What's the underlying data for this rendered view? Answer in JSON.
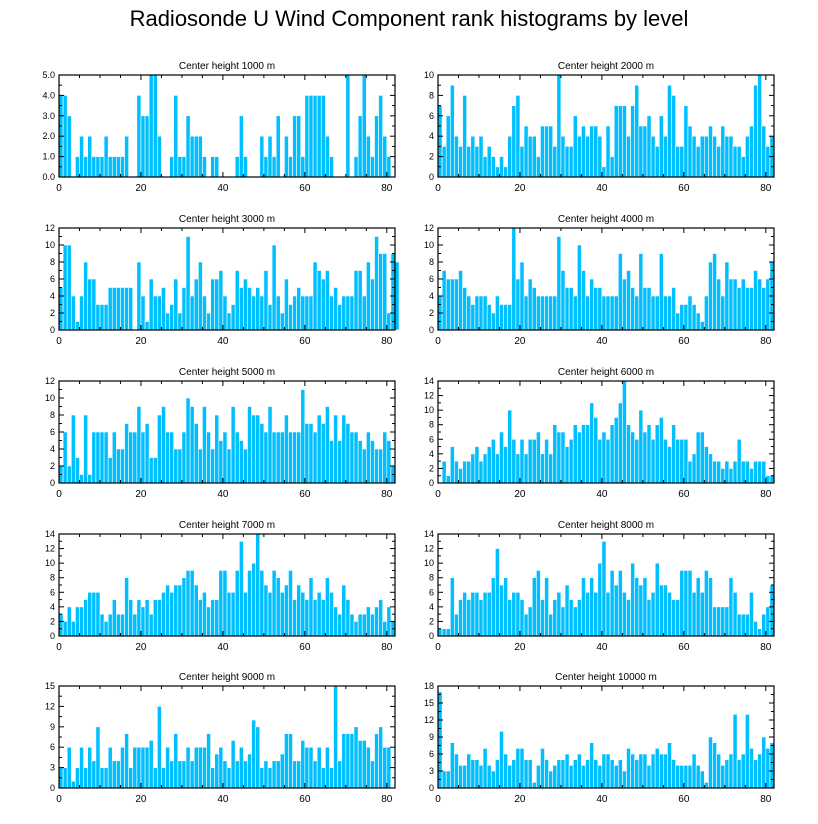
{
  "title": "Radiosonde U Wind Component rank histograms by level",
  "colors": {
    "bar_fill": "#00bfff",
    "bar_stroke": "#ffffff",
    "axis": "#000000"
  },
  "chart_data": [
    {
      "type": "bar",
      "title": "Center height 1000 m",
      "xlim": [
        0,
        82
      ],
      "ylim": [
        0,
        5
      ],
      "xticks": [
        0,
        20,
        40,
        60,
        80
      ],
      "yticks": [
        0,
        1,
        2,
        3,
        4,
        5
      ],
      "ytick_labels": [
        "0.0",
        "1.0",
        "2.0",
        "3.0",
        "4.0",
        "5.0"
      ],
      "values": [
        4,
        4,
        3,
        0,
        1,
        2,
        1,
        2,
        1,
        1,
        1,
        2,
        1,
        1,
        1,
        1,
        2,
        0,
        0,
        4,
        3,
        3,
        5,
        5,
        2,
        0,
        0,
        1,
        4,
        1,
        1,
        3,
        2,
        2,
        2,
        1,
        0,
        1,
        1,
        0,
        0,
        0,
        0,
        1,
        3,
        1,
        0,
        0,
        0,
        2,
        1,
        2,
        1,
        3,
        0,
        2,
        1,
        3,
        3,
        1,
        4,
        4,
        4,
        4,
        4,
        2,
        1,
        0,
        0,
        0,
        5,
        0,
        1,
        3,
        5,
        2,
        1,
        3,
        4,
        2,
        1
      ]
    },
    {
      "type": "bar",
      "title": "Center height 2000 m",
      "xlim": [
        0,
        82
      ],
      "ylim": [
        0,
        10
      ],
      "xticks": [
        0,
        20,
        40,
        60,
        80
      ],
      "yticks": [
        0,
        2,
        4,
        6,
        8,
        10
      ],
      "ytick_labels": [
        "0",
        "2",
        "4",
        "6",
        "8",
        "10"
      ],
      "values": [
        7,
        3,
        6,
        9,
        4,
        3,
        8,
        3,
        4,
        3,
        4,
        2,
        3,
        2,
        1,
        2,
        1,
        4,
        7,
        8,
        3,
        5,
        4,
        4,
        2,
        5,
        5,
        5,
        3,
        10,
        4,
        3,
        3,
        6,
        4,
        5,
        4,
        5,
        5,
        4,
        1,
        5,
        2,
        7,
        7,
        7,
        4,
        7,
        9,
        5,
        5,
        6,
        4,
        3,
        6,
        4,
        9,
        8,
        3,
        3,
        7,
        5,
        4,
        3,
        4,
        4,
        5,
        4,
        3,
        5,
        4,
        4,
        3,
        3,
        2,
        4,
        5,
        9,
        10,
        5,
        3,
        4
      ]
    },
    {
      "type": "bar",
      "title": "Center height 3000 m",
      "xlim": [
        0,
        82
      ],
      "ylim": [
        0,
        12
      ],
      "xticks": [
        0,
        20,
        40,
        60,
        80
      ],
      "yticks": [
        0,
        2,
        4,
        6,
        8,
        10,
        12
      ],
      "ytick_labels": [
        "0",
        "2",
        "4",
        "6",
        "8",
        "10",
        "12"
      ],
      "values": [
        5,
        10,
        10,
        4,
        1,
        4,
        8,
        6,
        6,
        3,
        3,
        3,
        5,
        5,
        5,
        5,
        5,
        5,
        0,
        8,
        4,
        1,
        6,
        4,
        4,
        5,
        2,
        3,
        6,
        2,
        5,
        11,
        4,
        6,
        8,
        4,
        2,
        6,
        6,
        7,
        4,
        2,
        3,
        7,
        5,
        6,
        5,
        4,
        5,
        4,
        7,
        3,
        10,
        4,
        2,
        6,
        3,
        4,
        5,
        4,
        4,
        4,
        8,
        7,
        6,
        7,
        4,
        5,
        3,
        4,
        4,
        4,
        7,
        7,
        4,
        8,
        6,
        11,
        9,
        9,
        2,
        9,
        8
      ]
    },
    {
      "type": "bar",
      "title": "Center height 4000 m",
      "xlim": [
        0,
        82
      ],
      "ylim": [
        0,
        12
      ],
      "xticks": [
        0,
        20,
        40,
        60,
        80
      ],
      "yticks": [
        0,
        2,
        4,
        6,
        8,
        10,
        12
      ],
      "ytick_labels": [
        "0",
        "2",
        "4",
        "6",
        "8",
        "10",
        "12"
      ],
      "values": [
        4,
        7,
        6,
        6,
        6,
        7,
        5,
        4,
        3,
        4,
        4,
        4,
        3,
        2,
        4,
        3,
        3,
        3,
        12,
        6,
        8,
        4,
        6,
        5,
        4,
        4,
        4,
        4,
        4,
        11,
        7,
        5,
        5,
        4,
        10,
        7,
        4,
        6,
        5,
        5,
        4,
        4,
        4,
        4,
        9,
        6,
        7,
        5,
        4,
        9,
        5,
        5,
        4,
        4,
        9,
        4,
        4,
        5,
        2,
        3,
        3,
        4,
        3,
        2,
        1,
        4,
        8,
        9,
        6,
        4,
        8,
        6,
        6,
        5,
        6,
        5,
        5,
        7,
        6,
        5,
        6,
        8
      ]
    },
    {
      "type": "bar",
      "title": "Center height 5000 m",
      "xlim": [
        0,
        82
      ],
      "ylim": [
        0,
        12
      ],
      "xticks": [
        0,
        20,
        40,
        60,
        80
      ],
      "yticks": [
        0,
        2,
        4,
        6,
        8,
        10,
        12
      ],
      "ytick_labels": [
        "0",
        "2",
        "4",
        "6",
        "8",
        "10",
        "12"
      ],
      "values": [
        2,
        6,
        2,
        8,
        3,
        1,
        8,
        1,
        6,
        6,
        6,
        6,
        3,
        6,
        4,
        4,
        7,
        6,
        6,
        9,
        6,
        7,
        3,
        3,
        8,
        9,
        6,
        6,
        4,
        4,
        6,
        10,
        9,
        7,
        4,
        9,
        6,
        4,
        8,
        5,
        6,
        4,
        9,
        6,
        5,
        4,
        9,
        8,
        8,
        7,
        6,
        9,
        6,
        6,
        6,
        8,
        6,
        6,
        6,
        11,
        7,
        7,
        6,
        8,
        7,
        9,
        5,
        8,
        5,
        8,
        7,
        6,
        6,
        5,
        4,
        6,
        5,
        4,
        4,
        6,
        5,
        2
      ]
    },
    {
      "type": "bar",
      "title": "Center height 6000 m",
      "xlim": [
        0,
        82
      ],
      "ylim": [
        0,
        14
      ],
      "xticks": [
        0,
        20,
        40,
        60,
        80
      ],
      "yticks": [
        0,
        2,
        4,
        6,
        8,
        10,
        12,
        14
      ],
      "ytick_labels": [
        "0",
        "2",
        "4",
        "6",
        "8",
        "10",
        "12",
        "14"
      ],
      "values": [
        0,
        3,
        1,
        5,
        3,
        2,
        3,
        3,
        4,
        5,
        3,
        4,
        5,
        6,
        4,
        7,
        5,
        10,
        6,
        4,
        6,
        4,
        6,
        6,
        7,
        4,
        6,
        4,
        8,
        7,
        7,
        5,
        6,
        8,
        7,
        8,
        8,
        11,
        9,
        6,
        7,
        6,
        8,
        9,
        11,
        14,
        8,
        7,
        6,
        10,
        7,
        8,
        6,
        8,
        9,
        6,
        5,
        8,
        6,
        6,
        6,
        3,
        4,
        7,
        7,
        5,
        4,
        3,
        3,
        2,
        3,
        2,
        3,
        6,
        3,
        3,
        2,
        3,
        3,
        3,
        1,
        1
      ]
    },
    {
      "type": "bar",
      "title": "Center height 7000 m",
      "xlim": [
        0,
        82
      ],
      "ylim": [
        0,
        14
      ],
      "xticks": [
        0,
        20,
        40,
        60,
        80
      ],
      "yticks": [
        0,
        2,
        4,
        6,
        8,
        10,
        12,
        14
      ],
      "ytick_labels": [
        "0",
        "2",
        "4",
        "6",
        "8",
        "10",
        "12",
        "14"
      ],
      "values": [
        3,
        2,
        4,
        2,
        4,
        4,
        5,
        6,
        6,
        6,
        3,
        2,
        3,
        5,
        3,
        3,
        8,
        5,
        3,
        5,
        4,
        5,
        3,
        5,
        5,
        6,
        7,
        6,
        7,
        7,
        8,
        9,
        9,
        7,
        5,
        6,
        4,
        5,
        5,
        9,
        9,
        6,
        6,
        9,
        13,
        6,
        9,
        10,
        14,
        9,
        7,
        6,
        9,
        8,
        6,
        7,
        9,
        5,
        7,
        6,
        5,
        8,
        5,
        6,
        5,
        8,
        6,
        4,
        3,
        7,
        5,
        3,
        2,
        3,
        3,
        4,
        3,
        4,
        5,
        2,
        4,
        2
      ]
    },
    {
      "type": "bar",
      "title": "Center height 8000 m",
      "xlim": [
        0,
        82
      ],
      "ylim": [
        0,
        14
      ],
      "xticks": [
        0,
        20,
        40,
        60,
        80
      ],
      "yticks": [
        0,
        2,
        4,
        6,
        8,
        10,
        12,
        14
      ],
      "ytick_labels": [
        "0",
        "2",
        "4",
        "6",
        "8",
        "10",
        "12",
        "14"
      ],
      "values": [
        1,
        1,
        1,
        8,
        3,
        5,
        6,
        5,
        6,
        6,
        5,
        6,
        6,
        8,
        12,
        7,
        8,
        5,
        6,
        6,
        5,
        3,
        4,
        8,
        9,
        5,
        8,
        3,
        5,
        6,
        4,
        7,
        5,
        4,
        5,
        8,
        6,
        8,
        6,
        10,
        13,
        6,
        9,
        7,
        9,
        6,
        5,
        10,
        8,
        7,
        8,
        5,
        6,
        10,
        7,
        7,
        6,
        5,
        5,
        9,
        9,
        9,
        6,
        8,
        6,
        9,
        8,
        4,
        4,
        4,
        4,
        8,
        6,
        3,
        3,
        3,
        6,
        2,
        1,
        3,
        4,
        7
      ]
    },
    {
      "type": "bar",
      "title": "Center height 9000 m",
      "xlim": [
        0,
        82
      ],
      "ylim": [
        0,
        15
      ],
      "xticks": [
        0,
        20,
        40,
        60,
        80
      ],
      "yticks": [
        0,
        3,
        6,
        9,
        12,
        15
      ],
      "ytick_labels": [
        "0",
        "3",
        "6",
        "9",
        "12",
        "15"
      ],
      "values": [
        3,
        3,
        6,
        1,
        3,
        6,
        3,
        6,
        4,
        9,
        3,
        3,
        6,
        4,
        4,
        6,
        8,
        3,
        6,
        6,
        6,
        6,
        7,
        3,
        12,
        3,
        6,
        4,
        8,
        4,
        4,
        6,
        4,
        6,
        6,
        6,
        8,
        3,
        5,
        6,
        4,
        3,
        7,
        4,
        6,
        4,
        5,
        10,
        9,
        3,
        4,
        3,
        4,
        4,
        5,
        8,
        8,
        4,
        4,
        7,
        6,
        6,
        4,
        6,
        3,
        6,
        3,
        15,
        4,
        8,
        8,
        8,
        9,
        7,
        7,
        6,
        4,
        8,
        9,
        6,
        6
      ]
    },
    {
      "type": "bar",
      "title": "Center height 10000 m",
      "xlim": [
        0,
        82
      ],
      "ylim": [
        0,
        18
      ],
      "xticks": [
        0,
        20,
        40,
        60,
        80
      ],
      "yticks": [
        0,
        3,
        6,
        9,
        12,
        15,
        18
      ],
      "ytick_labels": [
        "0",
        "3",
        "6",
        "9",
        "12",
        "15",
        "18"
      ],
      "values": [
        17,
        3,
        3,
        8,
        6,
        4,
        4,
        6,
        5,
        5,
        4,
        7,
        4,
        3,
        5,
        10,
        6,
        4,
        5,
        7,
        7,
        5,
        5,
        1,
        4,
        7,
        5,
        3,
        4,
        5,
        5,
        6,
        4,
        5,
        6,
        4,
        5,
        8,
        5,
        4,
        6,
        6,
        5,
        4,
        5,
        3,
        7,
        6,
        5,
        6,
        6,
        4,
        6,
        7,
        6,
        6,
        8,
        5,
        4,
        4,
        4,
        4,
        6,
        4,
        3,
        1,
        9,
        8,
        6,
        4,
        5,
        6,
        13,
        5,
        6,
        13,
        7,
        5,
        6,
        9,
        7,
        8
      ]
    }
  ]
}
